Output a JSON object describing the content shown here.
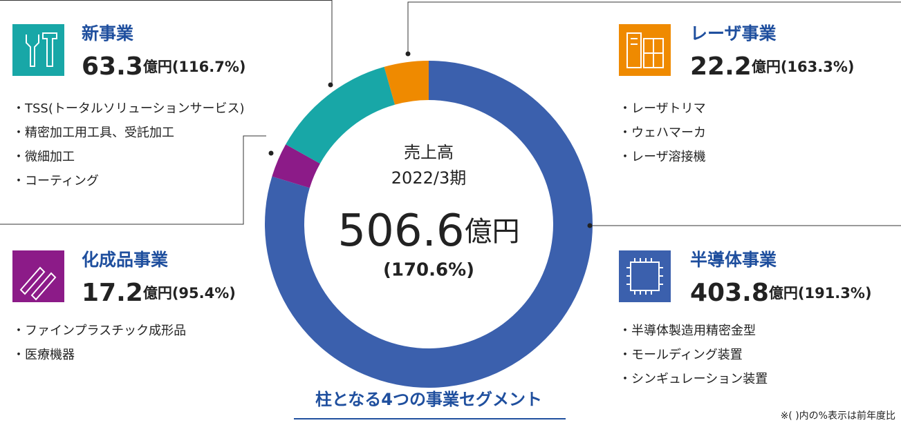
{
  "chart_data": {
    "type": "donut",
    "title": "柱となる4つの事業セグメント",
    "note": "※( )内の%表示は前年度比",
    "categories": [
      "半導体事業",
      "化成品事業",
      "新事業",
      "レーザ事業"
    ],
    "values": [
      403.8,
      17.2,
      63.3,
      22.2
    ],
    "colors": [
      "#3b60ad",
      "#8c1b88",
      "#18a7a7",
      "#ef8a00"
    ],
    "unit": "億円",
    "growth_labels": [
      "(191.3%)",
      "(95.4%)",
      "(116.7%)",
      "(163.3%)"
    ],
    "items": [
      [
        "・半導体製造用精密金型",
        "・モールディング装置",
        "・シンギュレーション装置"
      ],
      [
        "・ファインプラスチック成形品",
        "・医療機器"
      ],
      [
        "・TSS(トータルソリューションサービス)",
        "・精密加工用工具、受託加工",
        "・微細加工",
        "・コーティング"
      ],
      [
        "・レーザトリマ",
        "・ウェハマーカ",
        "・レーザ溶接機"
      ]
    ],
    "center": {
      "label": "売上高",
      "period": "2022/3期",
      "value": "506.6",
      "unit": "億円",
      "growth": "(170.6%)"
    }
  }
}
